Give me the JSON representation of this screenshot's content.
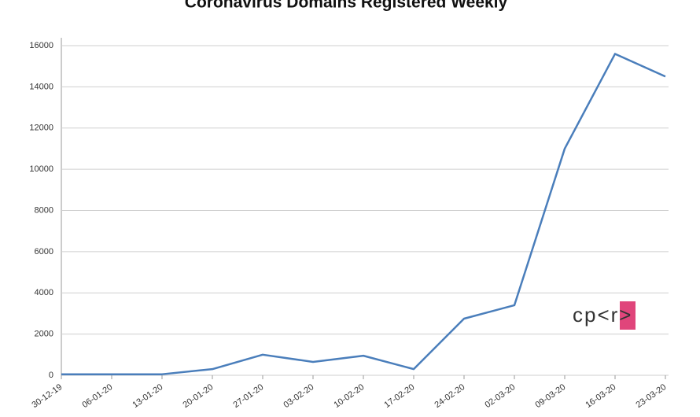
{
  "chart_data": {
    "type": "line",
    "title": "Coronavirus Domains Registered Weekly",
    "x": [
      "30-12-19",
      "06-01-20",
      "13-01-20",
      "20-01-20",
      "27-01-20",
      "03-02-20",
      "10-02-20",
      "17-02-20",
      "24-02-20",
      "02-03-20",
      "09-03-20",
      "16-03-20",
      "23-03-20"
    ],
    "series": [
      {
        "color": "#4a7ebb",
        "values": [
          50,
          50,
          50,
          300,
          1000,
          650,
          950,
          300,
          2750,
          3400,
          11000,
          15600,
          14500
        ]
      }
    ],
    "ylim": [
      0,
      16000
    ],
    "yticks": [
      0,
      2000,
      4000,
      6000,
      8000,
      10000,
      12000,
      14000,
      16000
    ],
    "grid": true,
    "logo": "cp<r>"
  }
}
